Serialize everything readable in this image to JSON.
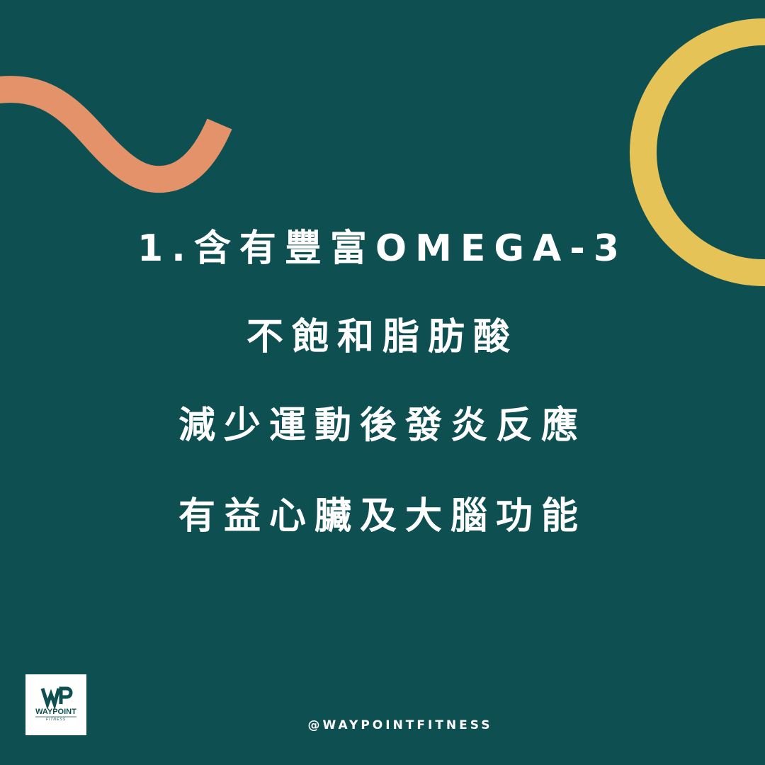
{
  "background_color": "#0e5052",
  "accent_colors": {
    "squiggle": "#e3926a",
    "ring": "#e6c356"
  },
  "headline": {
    "line_1": "1.含有豐富OMEGA-3",
    "line_2": "不飽和脂肪酸",
    "line_3": "減少運動後發炎反應",
    "line_4": "有益心臟及大腦功能"
  },
  "logo": {
    "name": "WAYPOINT",
    "subtitle": "FITNESS"
  },
  "footer": {
    "handle": "@WAYPOINTFITNESS"
  }
}
